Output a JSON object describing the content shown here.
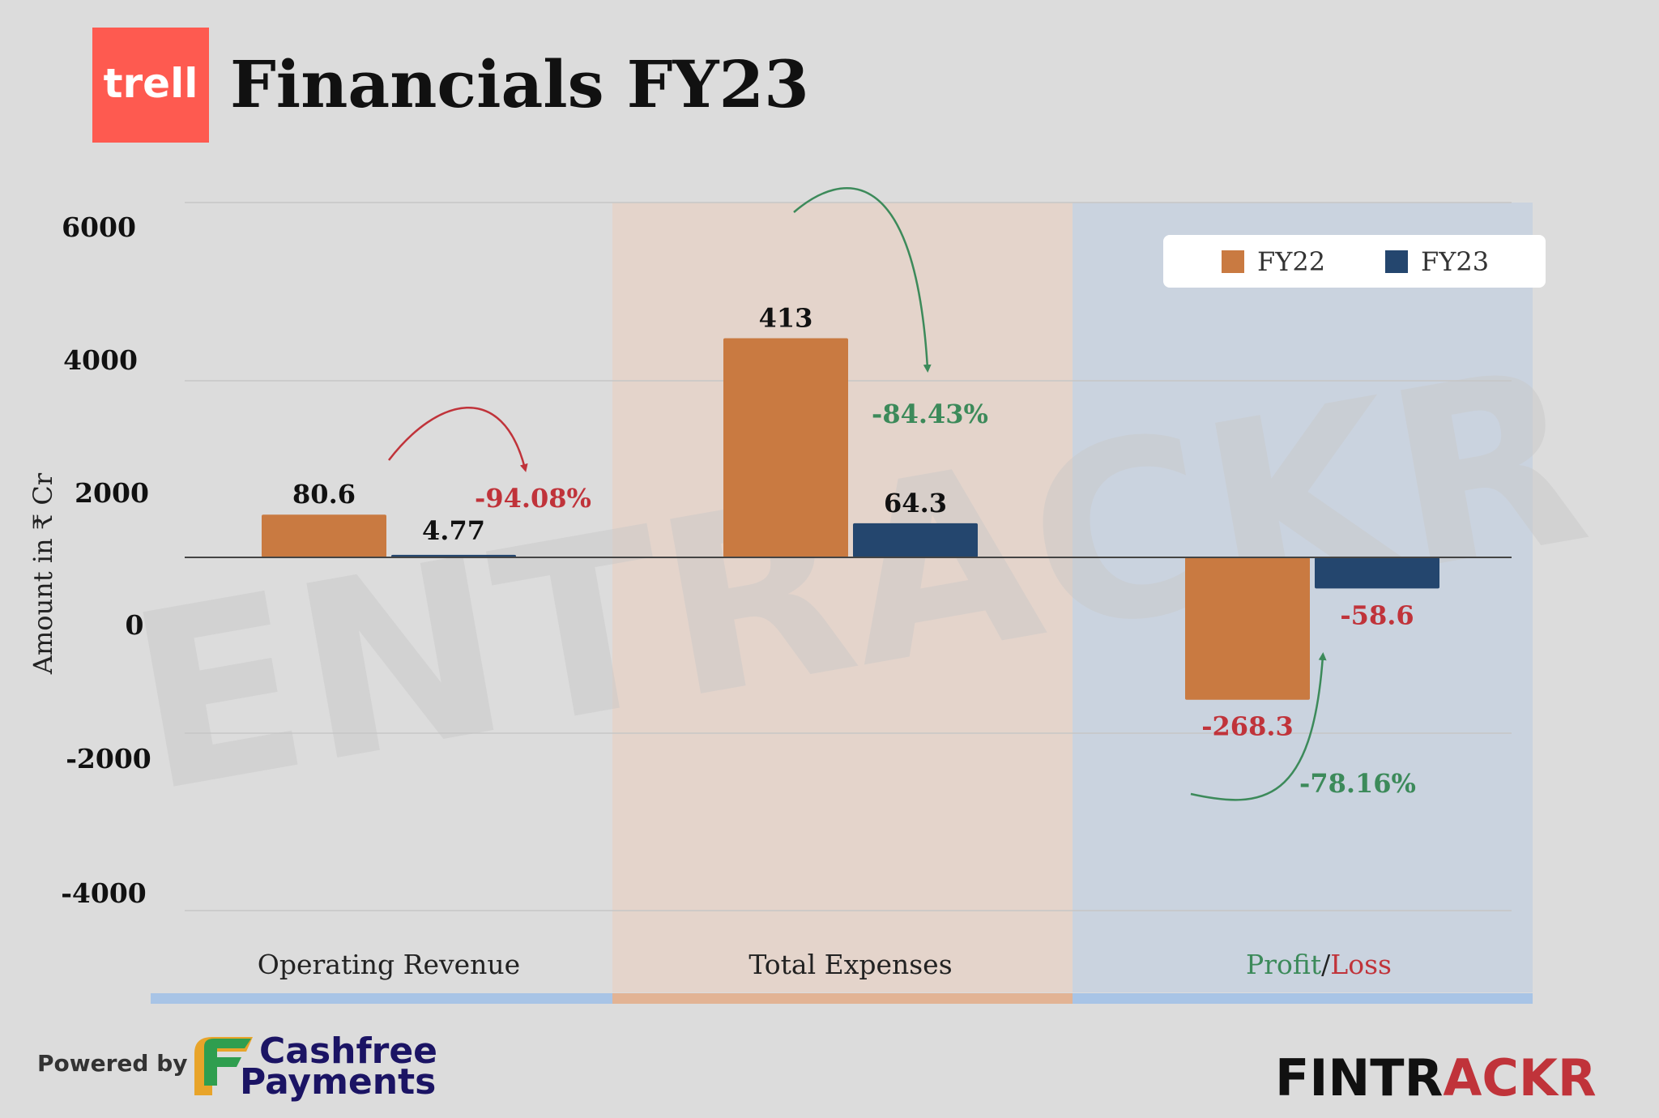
{
  "header": {
    "logo_text": "trell",
    "title": "Financials FY23"
  },
  "colors": {
    "fy22": "#c97a41",
    "fy23": "#24466e",
    "logo_bg": "#fe5a50",
    "negative": "#c0333a",
    "positive": "#3c8a5a",
    "band_expenses": "#f4c7ad",
    "band_profit": "#a8c4e6"
  },
  "chart_data": {
    "type": "bar",
    "ylabel": "Amount in ₹ Cr",
    "yticks": [
      "6000",
      "4000",
      "2000",
      "0",
      "-2000",
      "-4000"
    ],
    "categories": [
      "Operating Revenue",
      "Total Expenses",
      "Profit/Loss"
    ],
    "category_label_parts": {
      "profit": "Profit",
      "sep": "/",
      "loss": "Loss"
    },
    "series": [
      {
        "name": "FY22",
        "values": [
          80.6,
          413,
          -268.3
        ],
        "labels": [
          "80.6",
          "413",
          "-268.3"
        ]
      },
      {
        "name": "FY23",
        "values": [
          4.77,
          64.3,
          -58.6
        ],
        "labels": [
          "4.77",
          "64.3",
          "-58.6"
        ]
      }
    ],
    "changes": [
      {
        "category": "Operating Revenue",
        "label": "-94.08%",
        "tone": "negative"
      },
      {
        "category": "Total Expenses",
        "label": "-84.43%",
        "tone": "positive"
      },
      {
        "category": "Profit/Loss",
        "label": "-78.16%",
        "tone": "positive"
      }
    ],
    "legend": {
      "position": "top-right",
      "items": [
        "FY22",
        "FY23"
      ]
    },
    "grid": true
  },
  "watermark": "ENTRACKR",
  "footer": {
    "powered_by": "Powered by",
    "sponsor_line1": "Cashfree",
    "sponsor_line2": "Payments",
    "brand_part1": "FINTR",
    "brand_part2": "ACKR"
  }
}
